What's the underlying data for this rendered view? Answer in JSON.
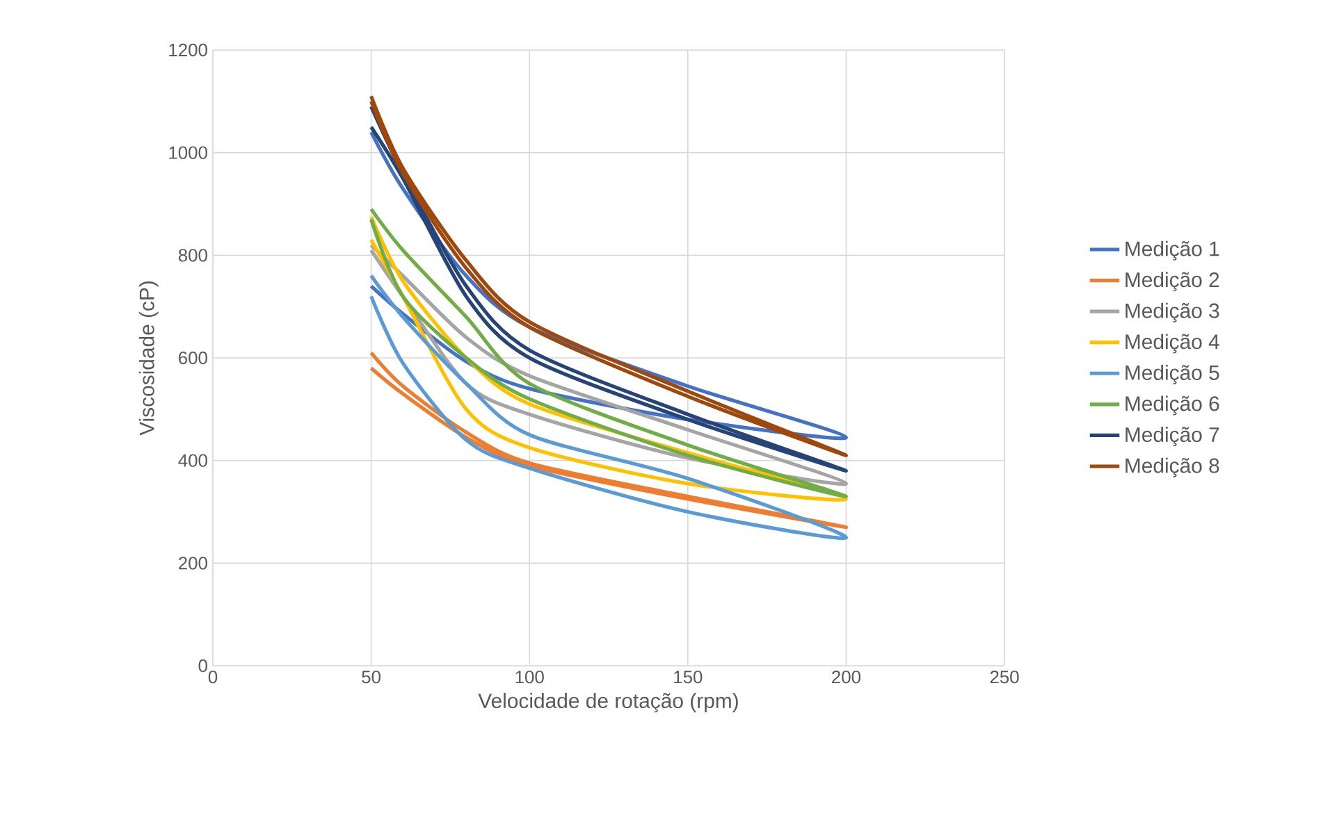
{
  "chart_data": {
    "type": "line",
    "xlabel": "Velocidade de rotação (rpm)",
    "ylabel": "Viscosidade (cP)",
    "x": [
      50,
      60,
      80,
      100,
      150,
      200,
      150,
      100,
      80,
      60,
      50
    ],
    "series": [
      {
        "name": "Medição 1",
        "color": "#4472c4",
        "values": [
          1040,
          930,
          760,
          660,
          545,
          445,
          480,
          540,
          593,
          686,
          740
        ]
      },
      {
        "name": "Medição 2",
        "color": "#ed7d31",
        "values": [
          610,
          545,
          455,
          395,
          330,
          270,
          325,
          390,
          445,
          530,
          580
        ]
      },
      {
        "name": "Medição 3",
        "color": "#a5a5a5",
        "values": [
          820,
          760,
          640,
          565,
          460,
          355,
          405,
          490,
          550,
          720,
          810
        ]
      },
      {
        "name": "Medição 4",
        "color": "#ffc000",
        "values": [
          875,
          750,
          600,
          510,
          415,
          325,
          355,
          425,
          500,
          720,
          830
        ]
      },
      {
        "name": "Medição 5",
        "color": "#5b9bd5",
        "values": [
          760,
          680,
          550,
          450,
          365,
          250,
          300,
          385,
          440,
          590,
          720
        ]
      },
      {
        "name": "Medição 6",
        "color": "#70ad47",
        "values": [
          890,
          810,
          680,
          550,
          430,
          330,
          410,
          520,
          600,
          720,
          870
        ]
      },
      {
        "name": "Medição 7",
        "color": "#264478",
        "values": [
          1090,
          960,
          740,
          615,
          490,
          380,
          480,
          600,
          720,
          950,
          1050
        ]
      },
      {
        "name": "Medição 8",
        "color": "#9e480e",
        "values": [
          1110,
          970,
          790,
          670,
          535,
          410,
          525,
          660,
          775,
          960,
          1100
        ]
      }
    ],
    "xlim": [
      0,
      250
    ],
    "xticks": [
      0,
      50,
      100,
      150,
      200,
      250
    ],
    "ylim": [
      0,
      1200
    ],
    "yticks": [
      0,
      200,
      400,
      600,
      800,
      1000,
      1200
    ],
    "grid": true,
    "legend": "right",
    "marker": "none",
    "line_style": "solid"
  }
}
